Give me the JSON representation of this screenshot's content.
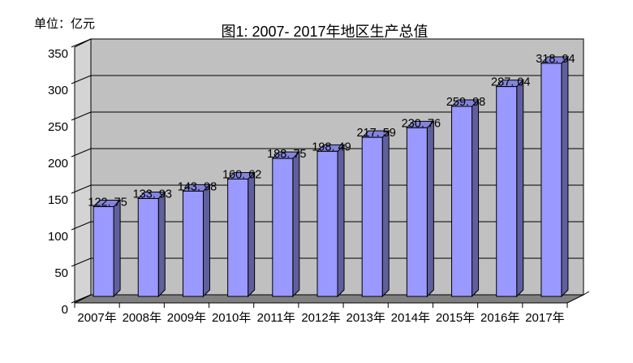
{
  "header": {
    "unit_label": "单位：亿元"
  },
  "chart_data": {
    "type": "bar",
    "variant": "3d-column",
    "title": "图1: 2007- 2017年地区生产总值",
    "unit": "单位：亿元",
    "categories": [
      "2007年",
      "2008年",
      "2009年",
      "2010年",
      "2011年",
      "2012年",
      "2013年",
      "2014年",
      "2015年",
      "2016年",
      "2017年"
    ],
    "values": [
      122.75,
      133.93,
      143.98,
      160.62,
      188.75,
      198.49,
      217.59,
      230.76,
      259.98,
      287.04,
      318.94
    ],
    "data_labels": [
      "122. 75",
      "133. 93",
      "143. 98",
      "160. 62",
      "188. 75",
      "198. 49",
      "217. 59",
      "230. 76",
      "259. 98",
      "287. 04",
      "318. 94"
    ],
    "xlabel": "",
    "ylabel": "",
    "ylim": [
      0,
      350
    ],
    "ytick_interval": 50,
    "yticks": [
      0,
      50,
      100,
      150,
      200,
      250,
      300,
      350
    ],
    "grid": "horizontal-major",
    "legend": "none",
    "colors": {
      "bar_front": "#9999FF",
      "bar_side": "#5F5F9E",
      "bar_top": "#8484DE",
      "back_wall": "#C0C0C0",
      "side_wall": "#D4D4D4",
      "floor": "#808080",
      "outline": "#000000",
      "background": "#FFFFFF"
    }
  }
}
